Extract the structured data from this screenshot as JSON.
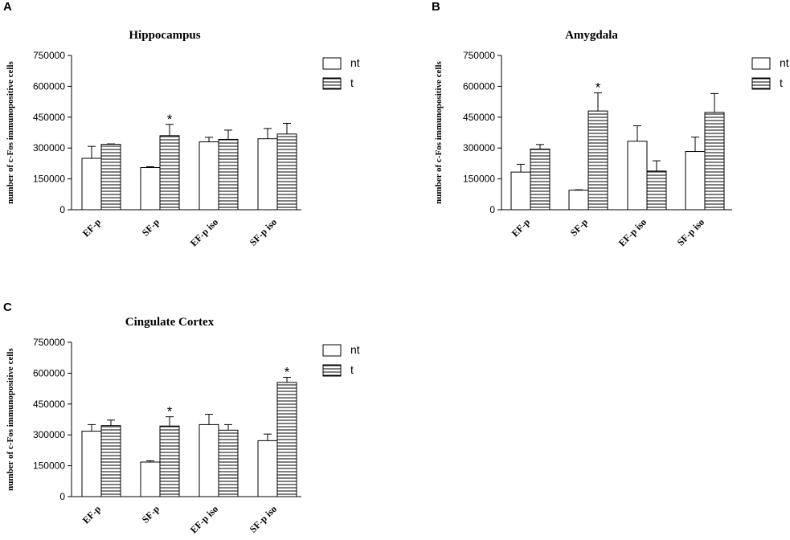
{
  "panel_labels": [
    "A",
    "B",
    "C"
  ],
  "chart_data": [
    {
      "type": "bar",
      "title": "Hippocampus",
      "ylabel": "number of c-Fos immunopositive cells",
      "xlabel": "",
      "ylim": [
        0,
        750000
      ],
      "yticks": [
        "0",
        "150000",
        "300000",
        "450000",
        "600000",
        "750000"
      ],
      "categories": [
        "EF-p",
        "SF-p",
        "EF-p iso",
        "SF-p iso"
      ],
      "legend": [
        "nt",
        "t"
      ],
      "legend_position": "top-right",
      "series": [
        {
          "name": "nt",
          "values": [
            250000,
            205000,
            330000,
            345000
          ],
          "errors": [
            58000,
            4000,
            22000,
            50000
          ]
        },
        {
          "name": "t",
          "values": [
            318000,
            360000,
            342000,
            368000
          ],
          "errors": [
            2000,
            55000,
            45000,
            52000
          ]
        }
      ],
      "significance": [
        {
          "category": "SF-p",
          "series": "t",
          "mark": "*"
        }
      ]
    },
    {
      "type": "bar",
      "title": "Amygdala",
      "ylabel": "number of c-Fos immunopositive cells",
      "xlabel": "",
      "ylim": [
        0,
        750000
      ],
      "yticks": [
        "0",
        "150000",
        "300000",
        "450000",
        "600000",
        "750000"
      ],
      "categories": [
        "EF-p",
        "SF-p",
        "EF-p iso",
        "SF-p iso"
      ],
      "legend": [
        "nt",
        "t"
      ],
      "legend_position": "top-right",
      "series": [
        {
          "name": "nt",
          "values": [
            183000,
            95000,
            333000,
            283000
          ],
          "errors": [
            38000,
            2000,
            75000,
            70000
          ]
        },
        {
          "name": "t",
          "values": [
            295000,
            480000,
            188000,
            473000
          ],
          "errors": [
            22000,
            88000,
            50000,
            92000
          ]
        }
      ],
      "significance": [
        {
          "category": "SF-p",
          "series": "t",
          "mark": "*"
        }
      ]
    },
    {
      "type": "bar",
      "title": "Cingulate Cortex",
      "ylabel": "number of c-Fos immunopositive cells",
      "xlabel": "",
      "ylim": [
        0,
        750000
      ],
      "yticks": [
        "0",
        "150000",
        "300000",
        "450000",
        "600000",
        "750000"
      ],
      "categories": [
        "EF-p",
        "SF-p",
        "EF-p iso",
        "SF-p iso"
      ],
      "legend": [
        "nt",
        "t"
      ],
      "legend_position": "top-right",
      "series": [
        {
          "name": "nt",
          "values": [
            318000,
            168000,
            350000,
            272000
          ],
          "errors": [
            32000,
            6000,
            50000,
            32000
          ]
        },
        {
          "name": "t",
          "values": [
            345000,
            343000,
            323000,
            555000
          ],
          "errors": [
            27000,
            45000,
            27000,
            25000
          ]
        }
      ],
      "significance": [
        {
          "category": "SF-p",
          "series": "t",
          "mark": "*"
        },
        {
          "category": "SF-p iso",
          "series": "t",
          "mark": "*"
        }
      ]
    }
  ]
}
